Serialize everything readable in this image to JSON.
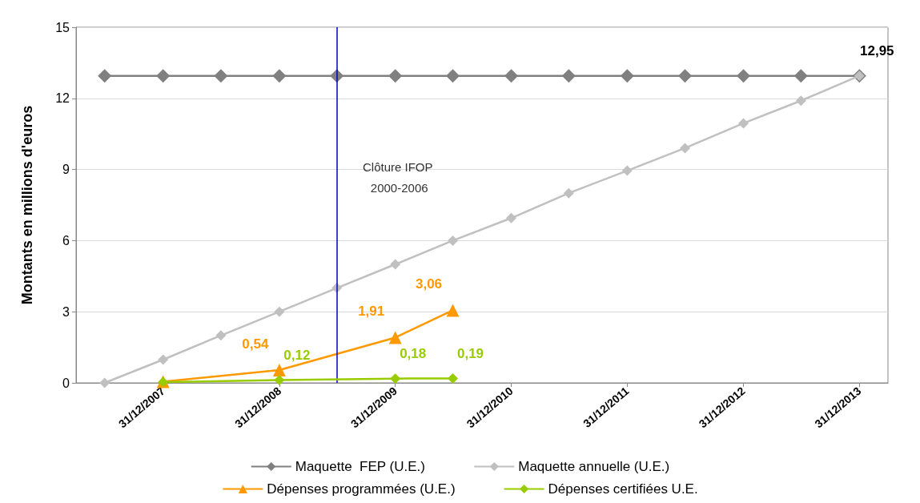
{
  "chart_data": {
    "type": "line",
    "ylabel": "Montants en millions d'euros",
    "x": [
      "2007-06-30",
      "2007-12-31",
      "2008-06-30",
      "2008-12-31",
      "2009-06-30",
      "2009-12-31",
      "2010-06-30",
      "2010-12-31",
      "2011-06-30",
      "2011-12-31",
      "2012-06-30",
      "2012-12-31",
      "2013-06-30",
      "2013-12-31"
    ],
    "xlim": [
      "2007-04-01",
      "2014-03-31"
    ],
    "xticks": [
      {
        "value": "2007-12-31",
        "label": "31/12/2007"
      },
      {
        "value": "2008-12-31",
        "label": "31/12/2008"
      },
      {
        "value": "2009-12-31",
        "label": "31/12/2009"
      },
      {
        "value": "2010-12-31",
        "label": "31/12/2010"
      },
      {
        "value": "2011-12-31",
        "label": "31/12/2011"
      },
      {
        "value": "2012-12-31",
        "label": "31/12/2012"
      },
      {
        "value": "2013-12-31",
        "label": "31/12/2013"
      }
    ],
    "ylim": [
      0,
      15
    ],
    "yticks": [
      0,
      3,
      6,
      9,
      12,
      15
    ],
    "grid": "y",
    "legend": "bottom",
    "line_style": "solid",
    "series": [
      {
        "name": "Maquette  FEP (U.E.)",
        "color": "#808080",
        "marker": "diamond",
        "values": [
          12.95,
          12.95,
          12.95,
          12.95,
          12.95,
          12.95,
          12.95,
          12.95,
          12.95,
          12.95,
          12.95,
          12.95,
          12.95,
          12.95
        ]
      },
      {
        "name": "Maquette annuelle (U.E.)",
        "color": "#c0c0c0",
        "marker": "diamond",
        "values": [
          0,
          0.98,
          2,
          3,
          4,
          5,
          6,
          6.95,
          8,
          8.95,
          9.9,
          10.95,
          11.9,
          12.95
        ],
        "value_labels": [
          null,
          null,
          null,
          null,
          null,
          null,
          null,
          null,
          null,
          null,
          null,
          null,
          null,
          "12,95"
        ]
      },
      {
        "name": "Dépenses programmées (U.E.)",
        "color": "#ff9900",
        "marker": "triangle",
        "x": [
          "2007-12-31",
          "2008-12-31",
          "2009-12-31",
          "2010-06-30"
        ],
        "values": [
          0.05,
          0.54,
          1.91,
          3.06
        ],
        "value_labels": [
          null,
          "0,54",
          "1,91",
          "3,06"
        ]
      },
      {
        "name": "Dépenses certifiées U.E.",
        "color": "#99cc00",
        "marker": "diamond",
        "x": [
          "2007-12-31",
          "2008-12-31",
          "2009-12-31",
          "2010-06-30"
        ],
        "values": [
          0.03,
          0.12,
          0.18,
          0.19
        ],
        "value_labels": [
          null,
          "0,12",
          "0,18",
          "0,19"
        ]
      }
    ],
    "ref_lines": [
      {
        "axis": "x",
        "value": "2009-06-30",
        "label": "Clôture IFOP 2000-2006",
        "color": "#0000cc"
      }
    ]
  }
}
